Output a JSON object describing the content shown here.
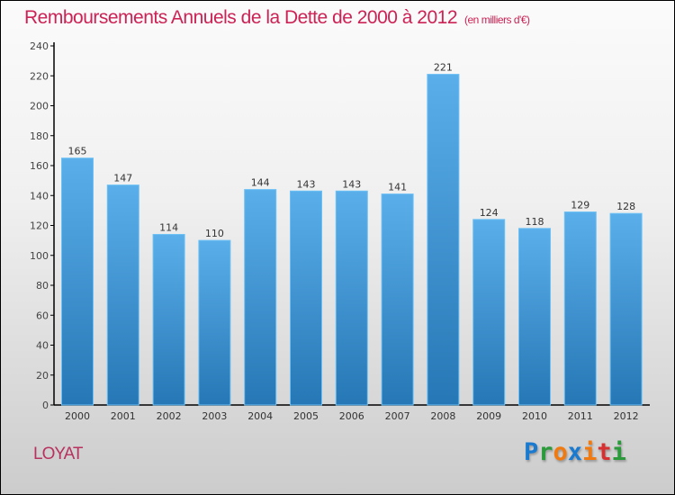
{
  "chart_data": {
    "type": "bar",
    "title": "Remboursements Annuels de la Dette de 2000 à 2012",
    "subtitle": "(en milliers d'€)",
    "categories": [
      "2000",
      "2001",
      "2002",
      "2003",
      "2004",
      "2005",
      "2006",
      "2007",
      "2008",
      "2009",
      "2010",
      "2011",
      "2012"
    ],
    "values": [
      165,
      147,
      114,
      110,
      144,
      143,
      143,
      141,
      221,
      124,
      118,
      129,
      128
    ],
    "yticks": [
      0,
      20,
      40,
      60,
      80,
      100,
      120,
      140,
      160,
      180,
      200,
      220,
      240
    ],
    "ylim": [
      0,
      240
    ],
    "xlabel": "",
    "ylabel": "",
    "bar_color": "#3a8fd0"
  },
  "town": "LOYAT",
  "logo": "Proxiti"
}
